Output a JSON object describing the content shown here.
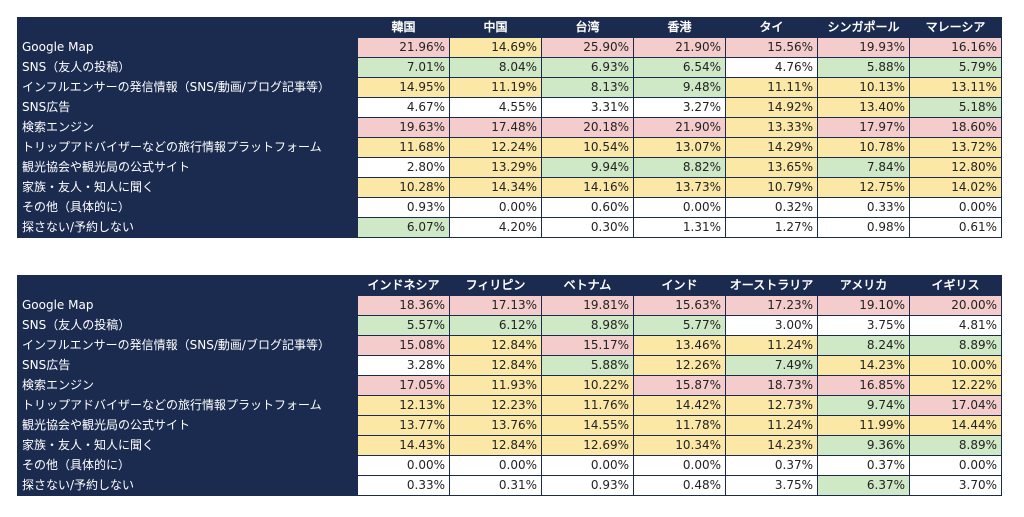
{
  "colors": {
    "header_bg": "#1b2b4f",
    "pink": "#f4cccc",
    "yellow": "#fce8a6",
    "green": "#cfe8c5",
    "white": "#ffffff"
  },
  "tables": [
    {
      "columns": [
        "韓国",
        "中国",
        "台湾",
        "香港",
        "タイ",
        "シンガポール",
        "マレーシア"
      ],
      "rows": [
        {
          "label": "Google Map",
          "values": [
            "21.96%",
            "14.69%",
            "25.90%",
            "21.90%",
            "15.56%",
            "19.93%",
            "16.16%"
          ],
          "colors": [
            "pink",
            "yellow",
            "pink",
            "pink",
            "pink",
            "pink",
            "pink"
          ]
        },
        {
          "label": "SNS（友人の投稿）",
          "values": [
            "7.01%",
            "8.04%",
            "6.93%",
            "6.54%",
            "4.76%",
            "5.88%",
            "5.79%"
          ],
          "colors": [
            "green",
            "green",
            "green",
            "green",
            "white",
            "green",
            "green"
          ]
        },
        {
          "label": "インフルエンサーの発信情報（SNS/動画/ブログ記事等）",
          "values": [
            "14.95%",
            "11.19%",
            "8.13%",
            "9.48%",
            "11.11%",
            "10.13%",
            "13.11%"
          ],
          "colors": [
            "yellow",
            "yellow",
            "green",
            "green",
            "yellow",
            "yellow",
            "yellow"
          ]
        },
        {
          "label": "SNS広告",
          "values": [
            "4.67%",
            "4.55%",
            "3.31%",
            "3.27%",
            "14.92%",
            "13.40%",
            "5.18%"
          ],
          "colors": [
            "white",
            "white",
            "white",
            "white",
            "yellow",
            "yellow",
            "green"
          ]
        },
        {
          "label": "検索エンジン",
          "values": [
            "19.63%",
            "17.48%",
            "20.18%",
            "21.90%",
            "13.33%",
            "17.97%",
            "18.60%"
          ],
          "colors": [
            "pink",
            "pink",
            "pink",
            "pink",
            "yellow",
            "pink",
            "pink"
          ]
        },
        {
          "label": "トリップアドバイザーなどの旅行情報プラットフォーム",
          "values": [
            "11.68%",
            "12.24%",
            "10.54%",
            "13.07%",
            "14.29%",
            "10.78%",
            "13.72%"
          ],
          "colors": [
            "yellow",
            "yellow",
            "yellow",
            "yellow",
            "yellow",
            "yellow",
            "yellow"
          ]
        },
        {
          "label": "観光協会や観光局の公式サイト",
          "values": [
            "2.80%",
            "13.29%",
            "9.94%",
            "8.82%",
            "13.65%",
            "7.84%",
            "12.80%"
          ],
          "colors": [
            "white",
            "yellow",
            "green",
            "green",
            "yellow",
            "green",
            "yellow"
          ]
        },
        {
          "label": "家族・友人・知人に聞く",
          "values": [
            "10.28%",
            "14.34%",
            "14.16%",
            "13.73%",
            "10.79%",
            "12.75%",
            "14.02%"
          ],
          "colors": [
            "yellow",
            "yellow",
            "yellow",
            "yellow",
            "yellow",
            "yellow",
            "yellow"
          ]
        },
        {
          "label": "その他（具体的に）",
          "values": [
            "0.93%",
            "0.00%",
            "0.60%",
            "0.00%",
            "0.32%",
            "0.33%",
            "0.00%"
          ],
          "colors": [
            "white",
            "white",
            "white",
            "white",
            "white",
            "white",
            "white"
          ]
        },
        {
          "label": "探さない/予約しない",
          "values": [
            "6.07%",
            "4.20%",
            "0.30%",
            "1.31%",
            "1.27%",
            "0.98%",
            "0.61%"
          ],
          "colors": [
            "green",
            "white",
            "white",
            "white",
            "white",
            "white",
            "white"
          ]
        }
      ]
    },
    {
      "columns": [
        "インドネシア",
        "フィリピン",
        "ベトナム",
        "インド",
        "オーストラリア",
        "アメリカ",
        "イギリス"
      ],
      "rows": [
        {
          "label": "Google Map",
          "values": [
            "18.36%",
            "17.13%",
            "19.81%",
            "15.63%",
            "17.23%",
            "19.10%",
            "20.00%"
          ],
          "colors": [
            "pink",
            "pink",
            "pink",
            "pink",
            "pink",
            "pink",
            "pink"
          ]
        },
        {
          "label": "SNS（友人の投稿）",
          "values": [
            "5.57%",
            "6.12%",
            "8.98%",
            "5.77%",
            "3.00%",
            "3.75%",
            "4.81%"
          ],
          "colors": [
            "green",
            "green",
            "green",
            "green",
            "white",
            "white",
            "white"
          ]
        },
        {
          "label": "インフルエンサーの発信情報（SNS/動画/ブログ記事等）",
          "values": [
            "15.08%",
            "12.84%",
            "15.17%",
            "13.46%",
            "11.24%",
            "8.24%",
            "8.89%"
          ],
          "colors": [
            "pink",
            "yellow",
            "pink",
            "yellow",
            "yellow",
            "green",
            "green"
          ]
        },
        {
          "label": "SNS広告",
          "values": [
            "3.28%",
            "12.84%",
            "5.88%",
            "12.26%",
            "7.49%",
            "14.23%",
            "10.00%"
          ],
          "colors": [
            "white",
            "yellow",
            "green",
            "yellow",
            "green",
            "yellow",
            "yellow"
          ]
        },
        {
          "label": "検索エンジン",
          "values": [
            "17.05%",
            "11.93%",
            "10.22%",
            "15.87%",
            "18.73%",
            "16.85%",
            "12.22%"
          ],
          "colors": [
            "pink",
            "yellow",
            "yellow",
            "pink",
            "pink",
            "pink",
            "yellow"
          ]
        },
        {
          "label": "トリップアドバイザーなどの旅行情報プラットフォーム",
          "values": [
            "12.13%",
            "12.23%",
            "11.76%",
            "14.42%",
            "12.73%",
            "9.74%",
            "17.04%"
          ],
          "colors": [
            "yellow",
            "yellow",
            "yellow",
            "yellow",
            "yellow",
            "green",
            "pink"
          ]
        },
        {
          "label": "観光協会や観光局の公式サイト",
          "values": [
            "13.77%",
            "13.76%",
            "14.55%",
            "11.78%",
            "11.24%",
            "11.99%",
            "14.44%"
          ],
          "colors": [
            "yellow",
            "yellow",
            "yellow",
            "yellow",
            "yellow",
            "yellow",
            "yellow"
          ]
        },
        {
          "label": "家族・友人・知人に聞く",
          "values": [
            "14.43%",
            "12.84%",
            "12.69%",
            "10.34%",
            "14.23%",
            "9.36%",
            "8.89%"
          ],
          "colors": [
            "yellow",
            "yellow",
            "yellow",
            "yellow",
            "yellow",
            "green",
            "green"
          ]
        },
        {
          "label": "その他（具体的に）",
          "values": [
            "0.00%",
            "0.00%",
            "0.00%",
            "0.00%",
            "0.37%",
            "0.37%",
            "0.00%"
          ],
          "colors": [
            "white",
            "white",
            "white",
            "white",
            "white",
            "white",
            "white"
          ]
        },
        {
          "label": "探さない/予約しない",
          "values": [
            "0.33%",
            "0.31%",
            "0.93%",
            "0.48%",
            "3.75%",
            "6.37%",
            "3.70%"
          ],
          "colors": [
            "white",
            "white",
            "white",
            "white",
            "white",
            "green",
            "white"
          ]
        }
      ]
    }
  ]
}
